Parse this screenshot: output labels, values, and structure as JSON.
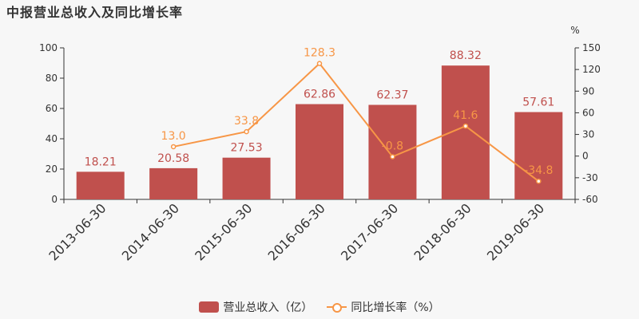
{
  "title": "中报营业总收入及同比增长率",
  "colors": {
    "bar": "#c0504d",
    "line": "#f79646",
    "axis": "#333333"
  },
  "legend": {
    "bar_label": "营业总收入（亿）",
    "line_label": "同比增长率（%）"
  },
  "chart_data": {
    "type": "bar",
    "categories": [
      "2013-06-30",
      "2014-06-30",
      "2015-06-30",
      "2016-06-30",
      "2017-06-30",
      "2018-06-30",
      "2019-06-30"
    ],
    "series": [
      {
        "name": "营业总收入（亿）",
        "type": "bar",
        "axis": "left",
        "values": [
          18.21,
          20.58,
          27.53,
          62.86,
          62.37,
          88.32,
          57.61
        ],
        "labels": [
          "18.21",
          "20.58",
          "27.53",
          "62.86",
          "62.37",
          "88.32",
          "57.61"
        ]
      },
      {
        "name": "同比增长率（%）",
        "type": "line",
        "axis": "right",
        "values": [
          null,
          13.0,
          33.8,
          128.3,
          -0.8,
          41.6,
          -34.8
        ],
        "labels": [
          "",
          "13.0",
          "33.8",
          "128.3",
          "-0.8",
          "41.6",
          "-34.8"
        ]
      }
    ],
    "y_left": {
      "min": 0,
      "max": 100,
      "ticks": [
        "0",
        "20",
        "40",
        "60",
        "80",
        "100"
      ]
    },
    "y_right": {
      "min": -60,
      "max": 150,
      "ticks": [
        "-60",
        "-30",
        "0",
        "30",
        "60",
        "90",
        "120",
        "150"
      ],
      "unit": "%"
    },
    "legend_position": "bottom-center",
    "grid": false
  }
}
